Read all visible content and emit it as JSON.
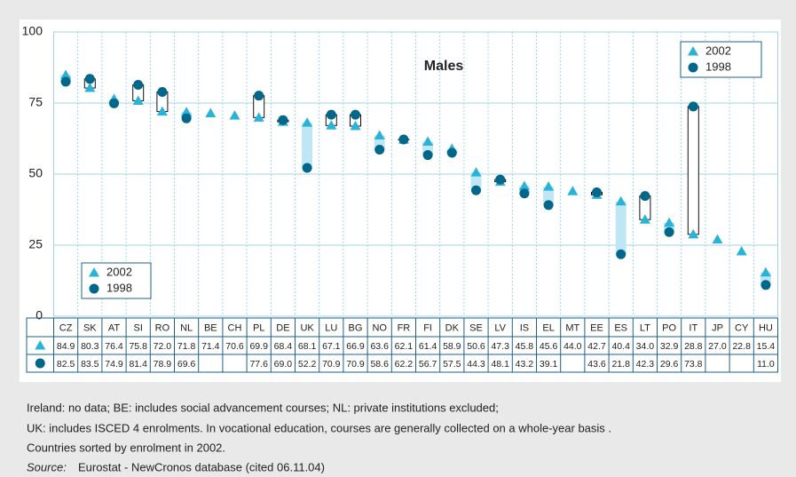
{
  "chart_data": {
    "type": "range_dot",
    "title": "Males",
    "categories": [
      "CZ",
      "SK",
      "AT",
      "SI",
      "RO",
      "NL",
      "BE",
      "CH",
      "PL",
      "DE",
      "UK",
      "LU",
      "BG",
      "NO",
      "FR",
      "FI",
      "DK",
      "SE",
      "LV",
      "IS",
      "EL",
      "MT",
      "EE",
      "ES",
      "LT",
      "PO",
      "IT",
      "JP",
      "CY",
      "HU"
    ],
    "series": [
      {
        "name": "2002",
        "color": "#29b3d9",
        "marker": "triangle",
        "values": [
          84.9,
          80.3,
          76.4,
          75.8,
          72.0,
          71.8,
          71.4,
          70.6,
          69.9,
          68.4,
          68.1,
          67.1,
          66.9,
          63.6,
          62.1,
          61.4,
          58.9,
          50.6,
          47.3,
          45.8,
          45.6,
          44.0,
          42.7,
          40.4,
          34.0,
          32.9,
          28.8,
          27.0,
          22.8,
          15.4
        ],
        "value_labels": [
          "84.9",
          "80.3",
          "76.4",
          "75.8",
          "72.0",
          "71.8",
          "71.4",
          "70.6",
          "69.9",
          "68.4",
          "68.1",
          "67.1",
          "66.9",
          "63.6",
          "62.1",
          "61.4",
          "58.9",
          "50.6",
          "47.3",
          "45.8",
          "45.6",
          "44.0",
          "42.7",
          "40.4",
          "34.0",
          "32.9",
          "28.8",
          "27.0",
          "22.8",
          "15.4"
        ]
      },
      {
        "name": "1998",
        "color": "#00678a",
        "marker": "circle",
        "values": [
          82.5,
          83.5,
          74.9,
          81.4,
          78.9,
          69.6,
          null,
          null,
          77.6,
          69.0,
          52.2,
          70.9,
          70.9,
          58.6,
          62.2,
          56.7,
          57.5,
          44.3,
          48.1,
          43.2,
          39.1,
          null,
          43.6,
          21.8,
          42.3,
          29.6,
          73.8,
          null,
          null,
          11.0
        ],
        "value_labels": [
          "82.5",
          "83.5",
          "74.9",
          "81.4",
          "78.9",
          "69.6",
          null,
          null,
          "77.6",
          "69.0",
          "52.2",
          "70.9",
          "70.9",
          "58.6",
          "62.2",
          "56.7",
          "57.5",
          "44.3",
          "48.1",
          "43.2",
          "39.1",
          null,
          "43.6",
          "21.8",
          "42.3",
          "29.6",
          "73.8",
          null,
          null,
          "11.0"
        ]
      }
    ],
    "ylim": [
      0,
      100
    ],
    "yticks": [
      0,
      25,
      50,
      75,
      100
    ],
    "grid": true,
    "notes": [
      "Ireland: no data; BE: includes social advancement courses; NL: private institutions excluded;",
      "UK: includes ISCED 4 enrolments. In vocational education, courses are generally collected on a  whole-year basis .",
      "Countries sorted by enrolment in 2002."
    ],
    "source_label": "Source:",
    "source_text": "Eurostat - NewCronos database (cited 06.11.04)"
  }
}
